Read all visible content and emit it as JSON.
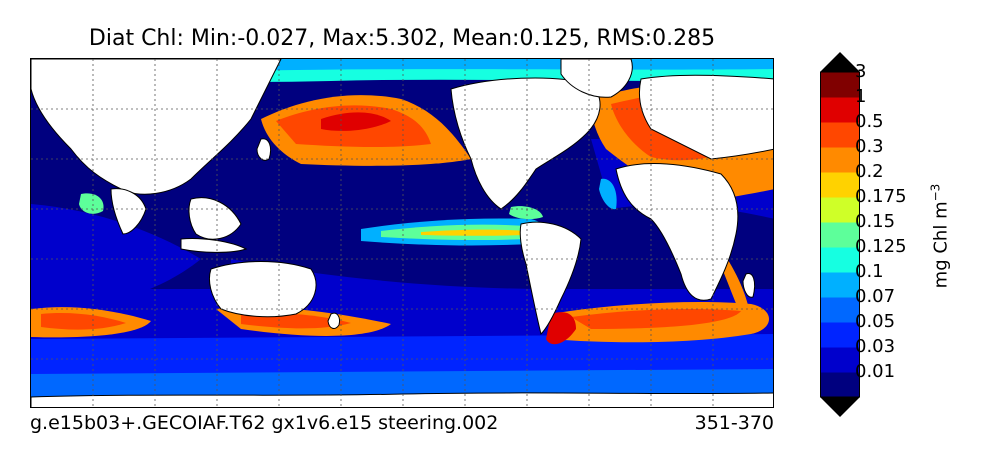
{
  "title": "Diat Chl: Min:-0.027, Max:5.302, Mean:0.125, RMS:0.285",
  "footer": {
    "left": "g.e15b03+.GECOIAF.T62 gx1v6.e15 steering.002",
    "right": "351-370"
  },
  "colorbar": {
    "unit": "mg Chl m",
    "unit_exponent": "−3",
    "labels": [
      "0.01",
      "0.03",
      "0.05",
      "0.07",
      "0.1",
      "0.125",
      "0.15",
      "0.175",
      "0.2",
      "0.3",
      "0.5",
      "1",
      "3"
    ],
    "colors": [
      "#00007f",
      "#0000cc",
      "#0024ff",
      "#0068ff",
      "#00b0ff",
      "#16ffe1",
      "#5dff9a",
      "#cfff28",
      "#ffd200",
      "#ff8a00",
      "#ff4700",
      "#e00000",
      "#800000"
    ]
  },
  "map": {
    "land_color": "#ffffff",
    "ocean_base_color": "#00007f"
  }
}
